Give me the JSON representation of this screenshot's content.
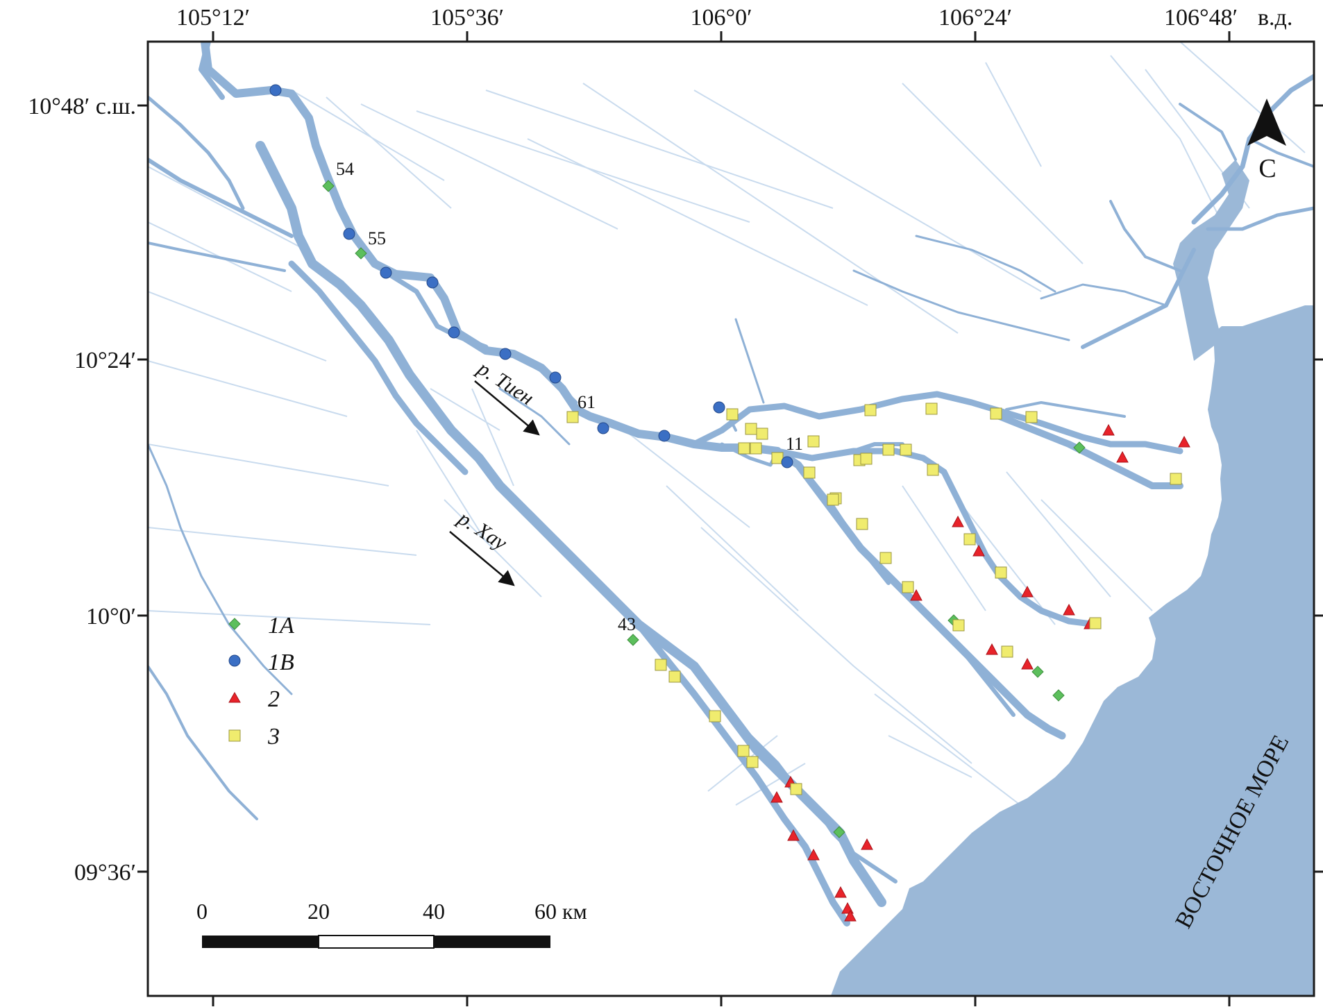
{
  "map": {
    "lon_ticks": [
      "105°12′",
      "105°36′",
      "106°0′",
      "106°24′",
      "106°48′"
    ],
    "lon_suffix": "в.д.",
    "lat_ticks": [
      "10°48′ с.ш.",
      "10°24′",
      "10°0′",
      "09°36′"
    ],
    "north_label": "С",
    "sea_label": "ВОСТОЧНОЕ МОРЕ",
    "river_labels": {
      "tien": "р. Тиен",
      "hau": "р. Хау"
    },
    "site_labels": [
      "54",
      "55",
      "61",
      "11",
      "43"
    ],
    "legend": [
      {
        "key": "1A",
        "label": "1А",
        "shape": "diamond",
        "color": "#5cbf5c"
      },
      {
        "key": "1B",
        "label": "1В",
        "shape": "circle",
        "color": "#3b6fc4"
      },
      {
        "key": "2",
        "label": "2",
        "shape": "triangle",
        "color": "#e8232a"
      },
      {
        "key": "3",
        "label": "3",
        "shape": "square",
        "color": "#f0ec6e"
      }
    ],
    "scale": {
      "labels": [
        "0",
        "20",
        "40",
        "60 км"
      ]
    },
    "colors": {
      "river": "#8fb1d6",
      "sea": "#9bb8d7",
      "canal": "#c9dbee",
      "frame": "#1a1a1a"
    }
  }
}
